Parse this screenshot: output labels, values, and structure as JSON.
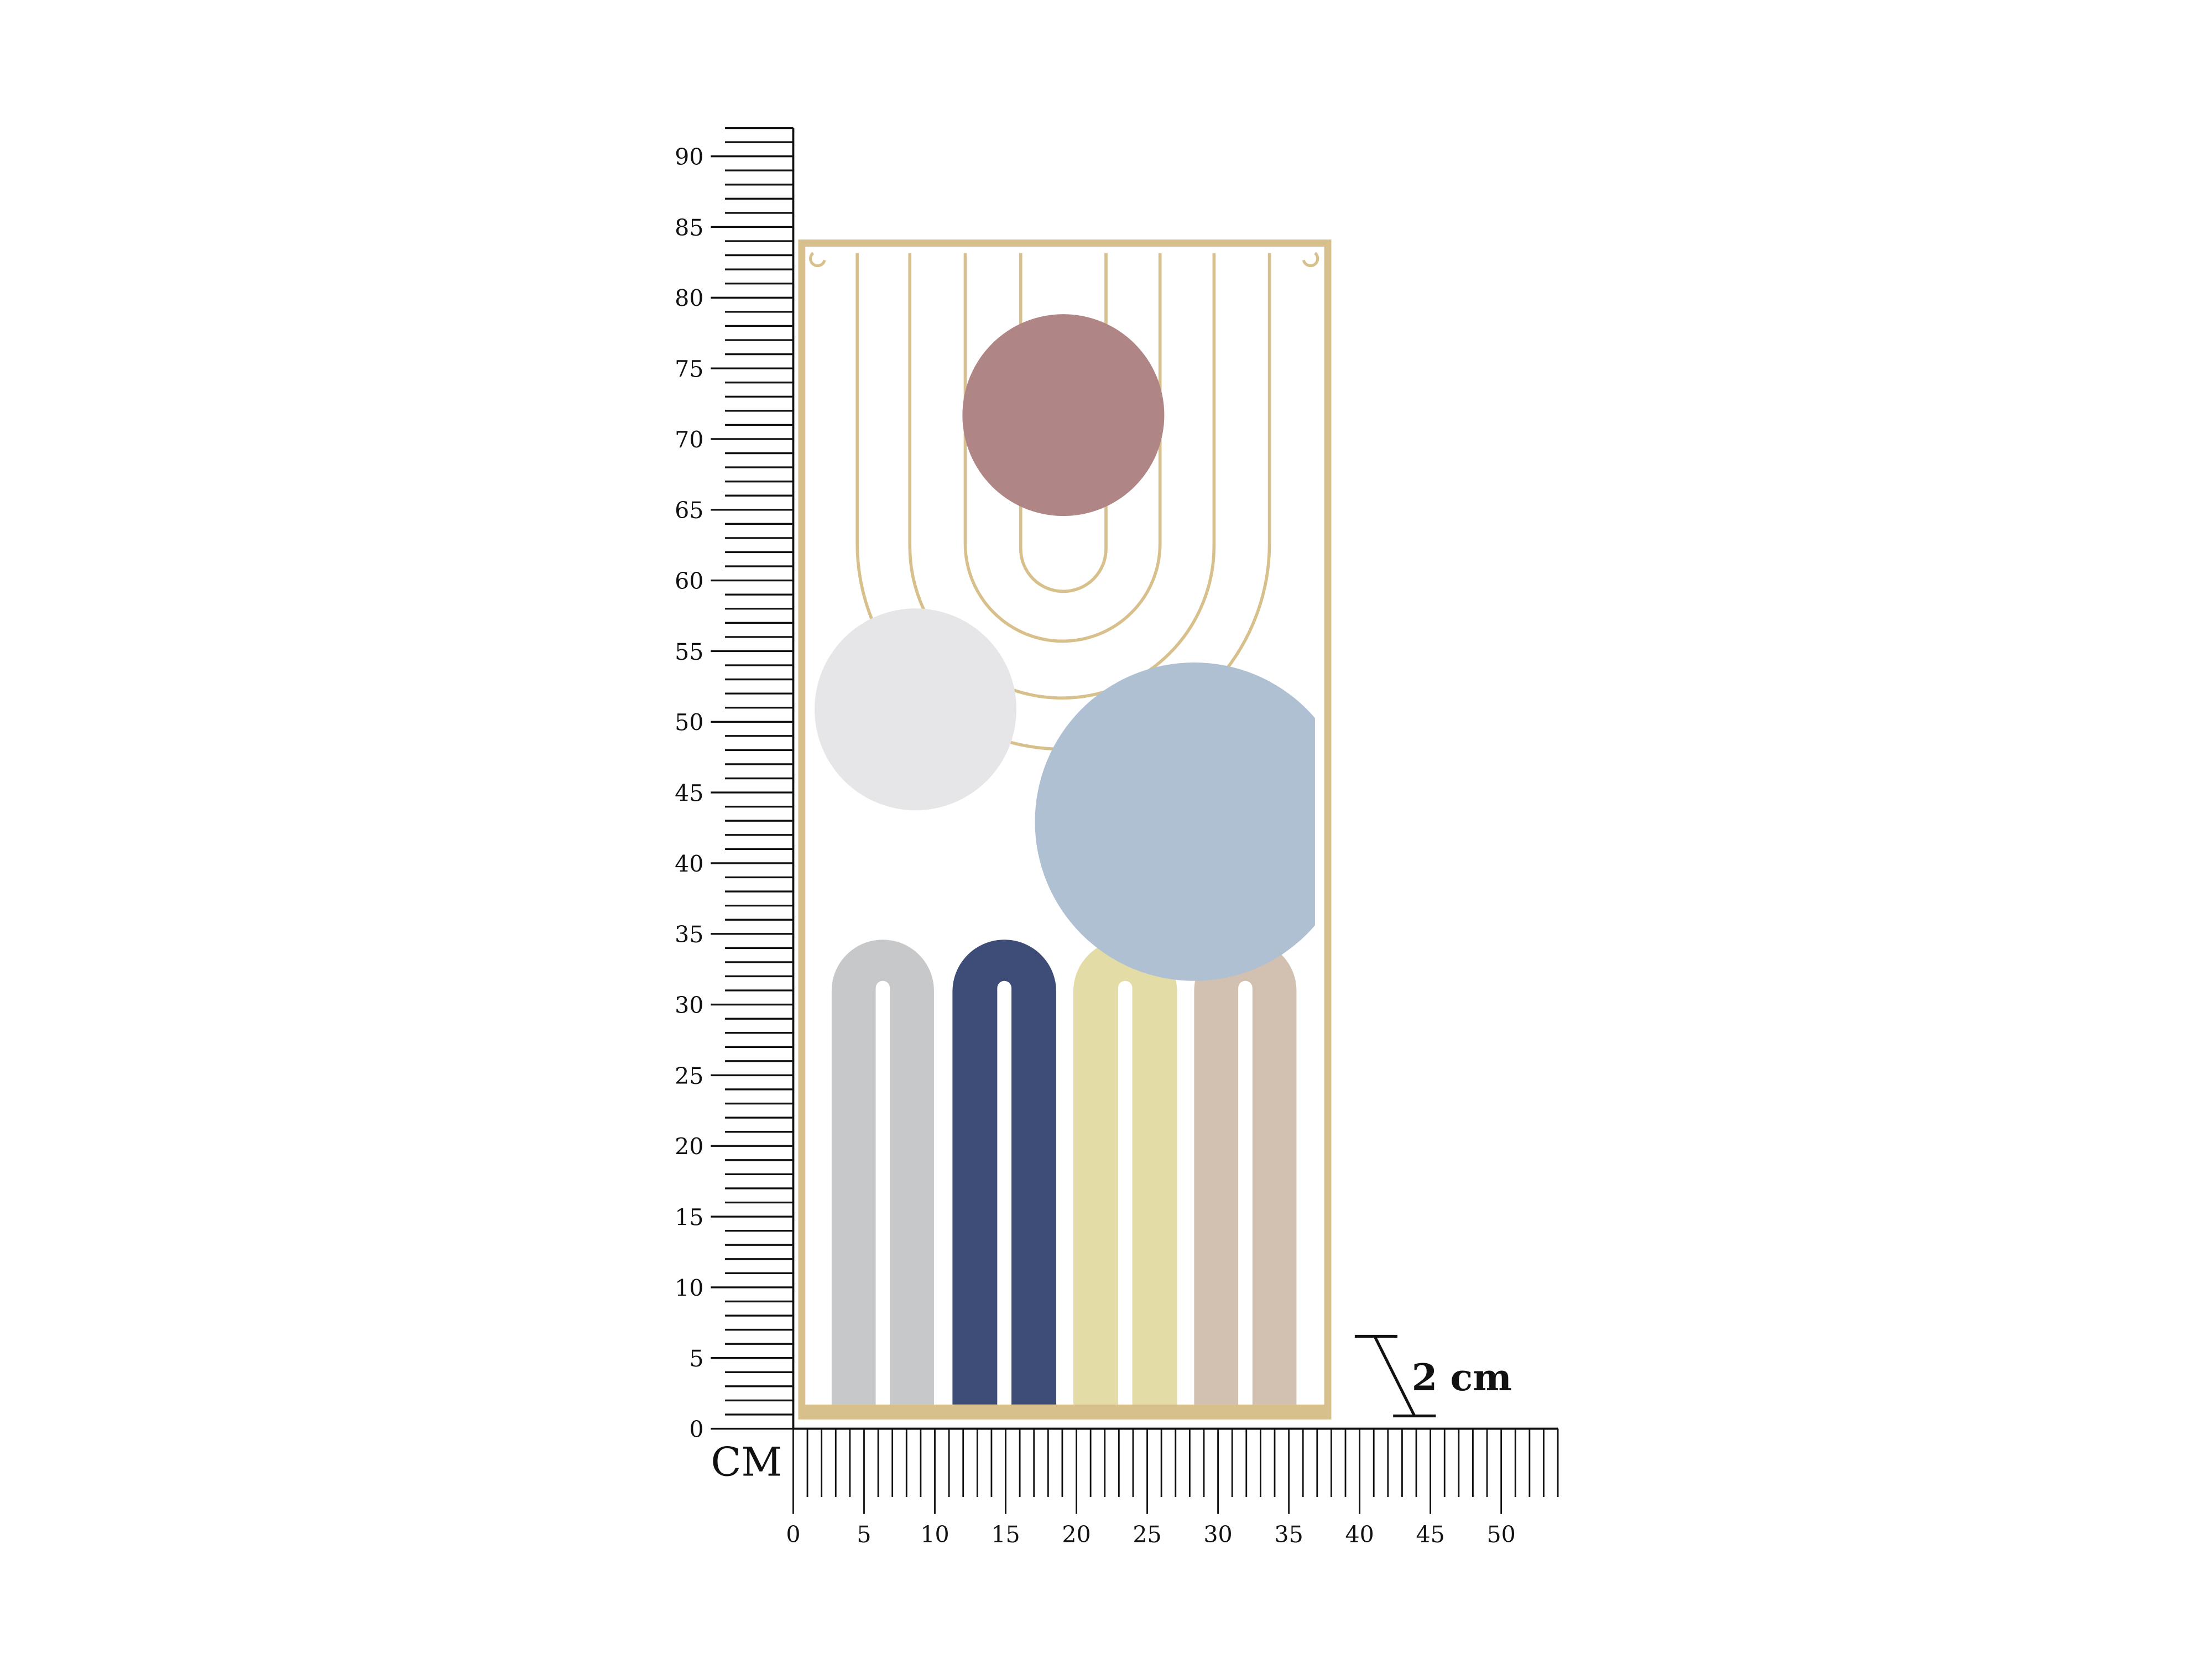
{
  "rulers": {
    "unit_label": "CM",
    "vertical": {
      "min": 0,
      "max": 90,
      "minor_step": 1,
      "major_step": 5,
      "labels": [
        "0",
        "5",
        "10",
        "15",
        "20",
        "25",
        "30",
        "35",
        "40",
        "45",
        "50",
        "55",
        "60",
        "65",
        "70",
        "75",
        "80",
        "85",
        "90"
      ]
    },
    "horizontal": {
      "min": 0,
      "max": 54,
      "minor_step": 1,
      "major_step": 5,
      "labels": [
        "0",
        "5",
        "10",
        "15",
        "20",
        "25",
        "30",
        "35",
        "40",
        "45",
        "50"
      ]
    }
  },
  "depth_annotation": {
    "label": "2 cm"
  },
  "product": {
    "frame_color": "#d8c08c",
    "discs": [
      {
        "name": "pink-disc",
        "color": "#b08585"
      },
      {
        "name": "white-disc",
        "color": "#e6e6e8"
      },
      {
        "name": "blue-disc",
        "color": "#b0c0d3"
      }
    ],
    "arches": [
      {
        "name": "grey-arch",
        "color": "#c6c8ca"
      },
      {
        "name": "navy-arch",
        "color": "#3d4d78"
      },
      {
        "name": "yellow-arch",
        "color": "#e3dca6"
      },
      {
        "name": "beige-arch",
        "color": "#d2c0b0"
      }
    ]
  }
}
